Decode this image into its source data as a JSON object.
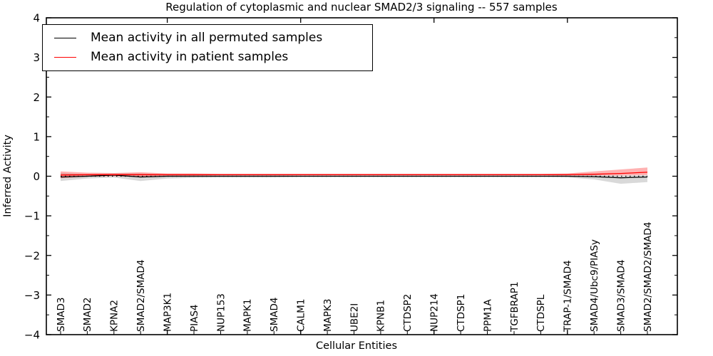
{
  "title": "Regulation of cytoplasmic and nuclear SMAD2/3 signaling -- 557 samples",
  "legend": {
    "items": [
      {
        "id": "permuted",
        "label": "Mean activity in all permuted samples",
        "color": "#000000"
      },
      {
        "id": "patient",
        "label": "Mean activity in patient samples",
        "color": "#ff0000"
      }
    ]
  },
  "chart_data": {
    "type": "line",
    "title": "Regulation of cytoplasmic and nuclear SMAD2/3 signaling -- 557 samples",
    "xlabel": "Cellular Entities",
    "ylabel": "Inferred Activity",
    "ylim": [
      -4,
      4
    ],
    "yticks": [
      -4,
      -3,
      -2,
      -1,
      0,
      1,
      2,
      3,
      4
    ],
    "ytick_minor_step": 0.5,
    "xticks_major_positions": [
      5,
      10,
      15,
      20
    ],
    "grid": false,
    "legend_position": "upper left",
    "zero_line": {
      "style": "dotted",
      "color": "#000000",
      "y": 0
    },
    "categories": [
      "SMAD3",
      "SMAD2",
      "KPNA2",
      "SMAD2/SMAD4",
      "MAP3K1",
      "PIAS4",
      "NUP153",
      "MAPK1",
      "SMAD4",
      "CALM1",
      "MAPK3",
      "UBE2I",
      "KPNB1",
      "CTDSP2",
      "NUP214",
      "CTDSP1",
      "PPM1A",
      "TGFBRAP1",
      "CTDSPL",
      "TRAP-1/SMAD4",
      "SMAD4/Ubc9/PIASy",
      "SMAD3/SMAD4",
      "SMAD2/SMAD2/SMAD4"
    ],
    "series": [
      {
        "id": "permuted",
        "name": "Mean activity in all permuted samples",
        "color": "#000000",
        "band_color": "rgba(0,0,0,0.15)",
        "values": [
          -0.02,
          0.0,
          0.03,
          -0.02,
          0.0,
          0.0,
          0.0,
          0.0,
          0.0,
          0.0,
          0.0,
          0.0,
          0.0,
          0.0,
          0.0,
          0.0,
          0.0,
          0.0,
          0.0,
          0.0,
          -0.01,
          -0.04,
          -0.02
        ],
        "band_low": [
          -0.12,
          -0.06,
          -0.03,
          -0.12,
          -0.06,
          -0.04,
          -0.03,
          -0.03,
          -0.03,
          -0.02,
          -0.02,
          -0.02,
          -0.02,
          -0.02,
          -0.02,
          -0.02,
          -0.02,
          -0.02,
          -0.02,
          -0.03,
          -0.08,
          -0.19,
          -0.15
        ],
        "band_high": [
          0.08,
          0.05,
          0.07,
          0.07,
          0.05,
          0.04,
          0.03,
          0.03,
          0.03,
          0.02,
          0.02,
          0.02,
          0.02,
          0.02,
          0.02,
          0.02,
          0.02,
          0.02,
          0.02,
          0.03,
          0.04,
          0.02,
          0.03
        ]
      },
      {
        "id": "patient",
        "name": "Mean activity in patient samples",
        "color": "#ff0000",
        "band_color": "rgba(255,0,0,0.3)",
        "values": [
          0.03,
          0.04,
          0.04,
          0.04,
          0.04,
          0.04,
          0.04,
          0.04,
          0.04,
          0.04,
          0.04,
          0.04,
          0.04,
          0.04,
          0.04,
          0.04,
          0.04,
          0.04,
          0.04,
          0.04,
          0.05,
          0.07,
          0.1
        ],
        "band_low": [
          -0.05,
          -0.01,
          0.0,
          -0.02,
          0.01,
          0.01,
          0.02,
          0.02,
          0.02,
          0.02,
          0.02,
          0.02,
          0.02,
          0.02,
          0.02,
          0.02,
          0.02,
          0.02,
          0.02,
          0.02,
          0.02,
          0.02,
          0.03
        ],
        "band_high": [
          0.12,
          0.09,
          0.08,
          0.1,
          0.07,
          0.07,
          0.06,
          0.06,
          0.06,
          0.06,
          0.06,
          0.06,
          0.06,
          0.06,
          0.06,
          0.06,
          0.06,
          0.06,
          0.06,
          0.07,
          0.12,
          0.17,
          0.22
        ]
      }
    ]
  }
}
